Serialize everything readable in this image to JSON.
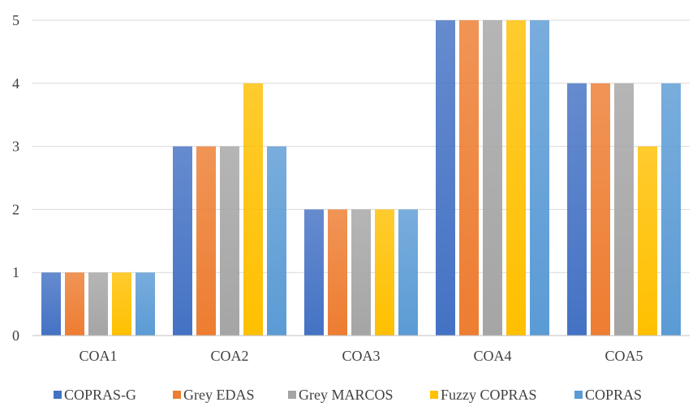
{
  "chart_data": {
    "type": "bar",
    "title": "",
    "xlabel": "",
    "ylabel": "",
    "categories": [
      "COA1",
      "COA2",
      "COA3",
      "COA4",
      "COA5"
    ],
    "ylim": [
      0,
      5
    ],
    "yticks": [
      0,
      1,
      2,
      3,
      4,
      5
    ],
    "grid": true,
    "legend_position": "bottom",
    "series": [
      {
        "name": "COPRAS-G",
        "color": "#4472c4",
        "values": [
          1,
          3,
          2,
          5,
          4
        ]
      },
      {
        "name": "Grey EDAS",
        "color": "#ed7d31",
        "values": [
          1,
          3,
          2,
          5,
          4
        ]
      },
      {
        "name": "Grey MARCOS",
        "color": "#a5a5a5",
        "values": [
          1,
          3,
          2,
          5,
          4
        ]
      },
      {
        "name": "Fuzzy COPRAS",
        "color": "#ffc000",
        "values": [
          1,
          4,
          2,
          5,
          3
        ]
      },
      {
        "name": "COPRAS",
        "color": "#5b9bd5",
        "values": [
          1,
          3,
          2,
          5,
          4
        ]
      }
    ]
  }
}
